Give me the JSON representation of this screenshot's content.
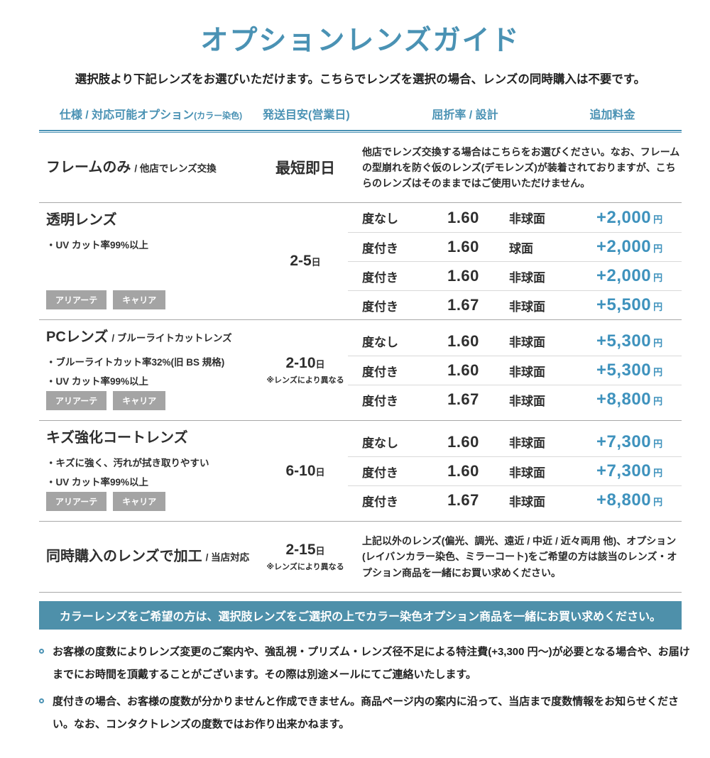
{
  "page": {
    "title": "オプションレンズガイド",
    "subtitle": "選択肢より下記レンズをお選びいただけます。こちらでレンズを選択の場合、レンズの同時購入は不要です。"
  },
  "table": {
    "headers": {
      "spec": "仕様 / 対応可能オプション",
      "spec_small": "(カラー染色)",
      "shipping": "発送目安(営業日)",
      "index_design": "屈折率 / 設計",
      "price": "追加料金"
    },
    "rows": [
      {
        "name": "フレームのみ",
        "name_sub": "/ 他店でレンズ交換",
        "features": [],
        "tags": [],
        "shipping": "最短即日",
        "shipping_unit": "",
        "shipping_note": "",
        "description": "他店でレンズ交換する場合はこちらをお選びください。なお、フレームの型崩れを防ぐ仮のレンズ(デモレンズ)が装着されておりますが、こちらのレンズはそのままではご使用いただけません。",
        "options": []
      },
      {
        "name": "透明レンズ",
        "name_sub": "",
        "features": [
          "・UV カット率99%以上"
        ],
        "tags": [
          "アリアーテ",
          "キャリア"
        ],
        "shipping": "2-5",
        "shipping_unit": "日",
        "shipping_note": "",
        "description": "",
        "options": [
          {
            "power": "度なし",
            "index": "1.60",
            "design": "非球面",
            "price": "+2,000",
            "unit": "円"
          },
          {
            "power": "度付き",
            "index": "1.60",
            "design": "球面",
            "price": "+2,000",
            "unit": "円"
          },
          {
            "power": "度付き",
            "index": "1.60",
            "design": "非球面",
            "price": "+2,000",
            "unit": "円"
          },
          {
            "power": "度付き",
            "index": "1.67",
            "design": "非球面",
            "price": "+5,500",
            "unit": "円"
          }
        ]
      },
      {
        "name": "PCレンズ",
        "name_sub": "/ ブルーライトカットレンズ",
        "features": [
          "・ブルーライトカット率32%(旧 BS 規格)",
          "・UV カット率99%以上"
        ],
        "tags": [
          "アリアーテ",
          "キャリア"
        ],
        "shipping": "2-10",
        "shipping_unit": "日",
        "shipping_note": "※レンズにより異なる",
        "description": "",
        "options": [
          {
            "power": "度なし",
            "index": "1.60",
            "design": "非球面",
            "price": "+5,300",
            "unit": "円"
          },
          {
            "power": "度付き",
            "index": "1.60",
            "design": "非球面",
            "price": "+5,300",
            "unit": "円"
          },
          {
            "power": "度付き",
            "index": "1.67",
            "design": "非球面",
            "price": "+8,800",
            "unit": "円"
          }
        ]
      },
      {
        "name": "キズ強化コートレンズ",
        "name_sub": "",
        "features": [
          "・キズに強く、汚れが拭き取りやすい",
          "・UV カット率99%以上"
        ],
        "tags": [
          "アリアーテ",
          "キャリア"
        ],
        "shipping": "6-10",
        "shipping_unit": "日",
        "shipping_note": "",
        "description": "",
        "options": [
          {
            "power": "度なし",
            "index": "1.60",
            "design": "非球面",
            "price": "+7,300",
            "unit": "円"
          },
          {
            "power": "度付き",
            "index": "1.60",
            "design": "非球面",
            "price": "+7,300",
            "unit": "円"
          },
          {
            "power": "度付き",
            "index": "1.67",
            "design": "非球面",
            "price": "+8,800",
            "unit": "円"
          }
        ]
      },
      {
        "name": "同時購入のレンズで加工",
        "name_sub": "/ 当店対応",
        "features": [],
        "tags": [],
        "shipping": "2-15",
        "shipping_unit": "日",
        "shipping_note": "※レンズにより異なる",
        "description": "上記以外のレンズ(偏光、調光、遠近 / 中近 / 近々両用 他)、オプション(レイバンカラー染色、ミラーコート)をご希望の方は該当のレンズ・オプション商品を一緒にお買い求めください。",
        "options": []
      }
    ]
  },
  "banner": {
    "text": "カラーレンズをご希望の方は、選択肢レンズをご選択の上でカラー染色オプション商品を一緒にお買い求めください。"
  },
  "notes": [
    "お客様の度数によりレンズ変更のご案内や、強乱視・プリズム・レンズ径不足による特注費(+3,300 円〜)が必要となる場合や、お届けまでにお時間を頂戴することがございます。その際は別途メールにてご連絡いたします。",
    "度付きの場合、お客様の度数が分かりませんと作成できません。商品ページ内の案内に沿って、当店まで度数情報をお知らせください。なお、コンタクトレンズの度数ではお作り出来かねます。"
  ],
  "colors": {
    "accent_blue": "#4a92b4",
    "price_blue": "#3e92bd",
    "banner_background": "#4e90aa",
    "tag_gray": "#a4a4a4",
    "text_dark": "#2e2e2e"
  }
}
